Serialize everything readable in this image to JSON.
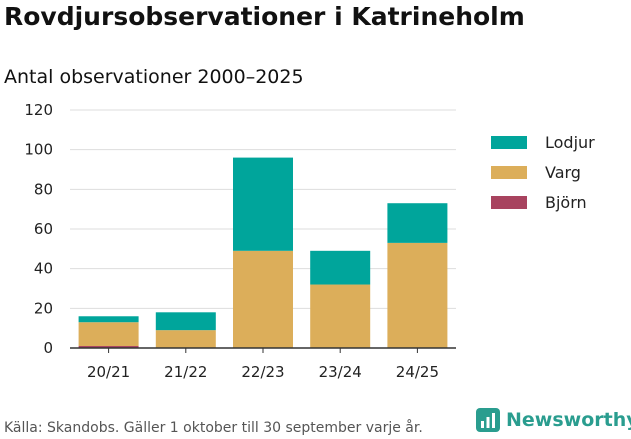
{
  "header": {
    "title": "Rovdjursobservationer i Katrineholm",
    "subtitle": "Antal observationer 2000–2025"
  },
  "footer": {
    "source": "Källa: Skandobs. Gäller 1 oktober till 30 september varje år.",
    "brand": "Newsworthy",
    "brand_icon": "bar-chart-icon"
  },
  "colors": {
    "lodjur": "#00a59b",
    "varg": "#dcae5a",
    "bjorn": "#a8435f",
    "axis": "#333333",
    "grid": "#dddddd"
  },
  "chart_data": {
    "type": "bar",
    "stacked": true,
    "categories": [
      "20/21",
      "21/22",
      "22/23",
      "23/24",
      "24/25"
    ],
    "series": [
      {
        "name": "Björn",
        "values": [
          1,
          0,
          0,
          0,
          0
        ]
      },
      {
        "name": "Varg",
        "values": [
          12,
          9,
          49,
          32,
          53
        ]
      },
      {
        "name": "Lodjur",
        "values": [
          3,
          9,
          47,
          17,
          20
        ]
      }
    ],
    "legend_order": [
      "Lodjur",
      "Varg",
      "Björn"
    ],
    "yticks": [
      0,
      20,
      40,
      60,
      80,
      100,
      120
    ],
    "ylim": [
      0,
      120
    ],
    "grid": true,
    "legend_position": "right"
  }
}
